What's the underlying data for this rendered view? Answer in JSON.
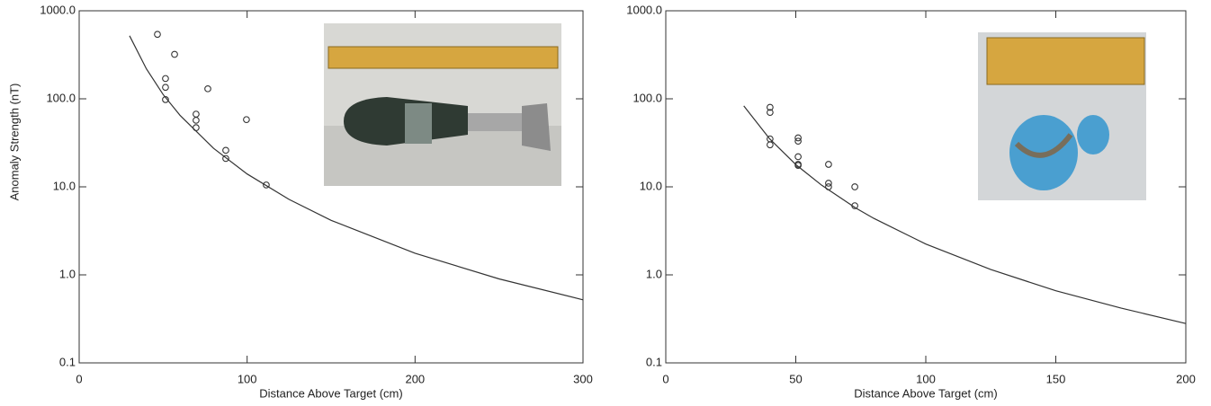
{
  "chart_data": [
    {
      "type": "scatter",
      "xlabel": "Distance Above Target (cm)",
      "ylabel": "Anomaly Strength (nT)",
      "xlim": [
        0,
        300
      ],
      "xticks": [
        0,
        100,
        200,
        300
      ],
      "ylim": [
        0.1,
        1000
      ],
      "log_y": true,
      "yticks": [
        {
          "value": 1000,
          "label": "1000.0"
        },
        {
          "value": 100,
          "label": "100.0"
        },
        {
          "value": 10,
          "label": "10.0"
        },
        {
          "value": 1,
          "label": "1.0"
        },
        {
          "value": 0.1,
          "label": "0.1"
        }
      ],
      "series": [
        {
          "type": "scatter",
          "color": "#333333",
          "x": [
            46.6,
            56.8,
            51.4,
            51.4,
            51.4,
            76.6,
            69.6,
            69.6,
            69.6,
            99.6,
            87.3,
            87.3,
            111.4
          ],
          "values": [
            540,
            320,
            170,
            135,
            98,
            130,
            67,
            57,
            47,
            58,
            26,
            21,
            10.5
          ]
        },
        {
          "type": "line",
          "color": "#333333",
          "x": [
            30,
            40,
            50,
            60,
            80,
            100,
            125,
            150,
            200,
            250,
            300
          ],
          "values": [
            520,
            219,
            112,
            65,
            27.4,
            14.0,
            7.19,
            4.16,
            1.76,
            0.9,
            0.52
          ]
        }
      ]
    },
    {
      "type": "scatter",
      "xlabel": "Distance Above Target (cm)",
      "xlim": [
        0,
        200
      ],
      "xticks": [
        0,
        50,
        100,
        150,
        200
      ],
      "ylim": [
        0.1,
        1000
      ],
      "log_y": true,
      "yticks": [
        {
          "value": 1000,
          "label": "1000.0"
        },
        {
          "value": 100,
          "label": "100.0"
        },
        {
          "value": 10,
          "label": "10.0"
        },
        {
          "value": 1,
          "label": "1.0"
        },
        {
          "value": 0.1,
          "label": "0.1"
        }
      ],
      "series": [
        {
          "type": "scatter",
          "color": "#333333",
          "x": [
            40.1,
            40.1,
            40.1,
            40.1,
            50.9,
            50.9,
            50.9,
            50.9,
            50.9,
            62.6,
            62.6,
            62.6,
            72.7,
            72.7
          ],
          "values": [
            80,
            70,
            35,
            30,
            36,
            33,
            22,
            18,
            17.5,
            18,
            11,
            10,
            10,
            6.1
          ]
        },
        {
          "type": "line",
          "color": "#333333",
          "x": [
            30,
            40,
            50,
            60,
            73,
            80,
            100,
            125,
            150,
            175,
            200
          ],
          "values": [
            83,
            35,
            17.9,
            10.4,
            5.76,
            4.38,
            2.24,
            1.15,
            0.66,
            0.42,
            0.28
          ]
        }
      ]
    }
  ]
}
